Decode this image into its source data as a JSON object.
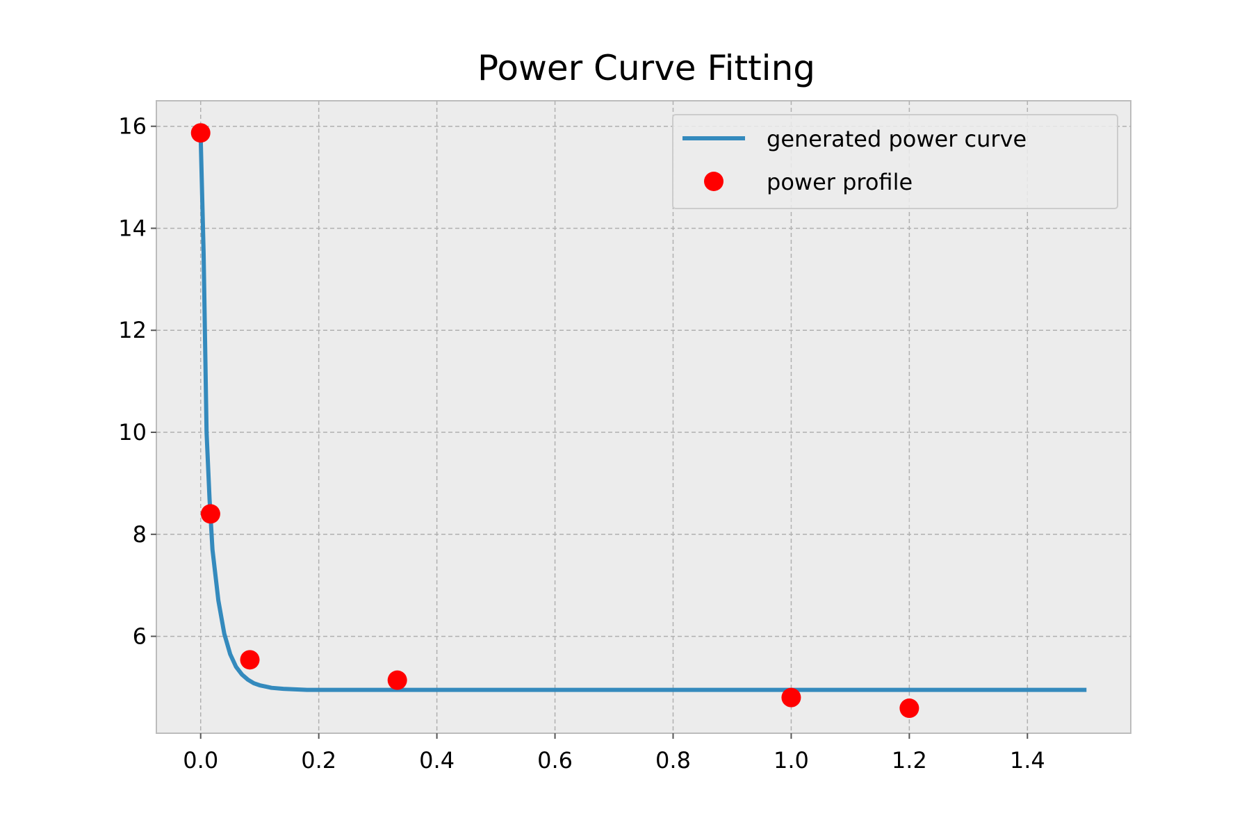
{
  "chart_data": {
    "type": "line",
    "title": "Power Curve Fitting",
    "xlabel": "",
    "ylabel": "",
    "xlim": [
      -0.075,
      1.575
    ],
    "ylim": [
      4.1,
      16.5
    ],
    "xticks": [
      "0.0",
      "0.2",
      "0.4",
      "0.6",
      "0.8",
      "1.0",
      "1.2",
      "1.4"
    ],
    "yticks": [
      "6",
      "8",
      "10",
      "12",
      "14",
      "16"
    ],
    "grid": true,
    "legend_position": "top-right",
    "background": "#ececec",
    "series": [
      {
        "name": "generated power curve",
        "kind": "line",
        "color": "#348abd",
        "x": [
          0.0,
          0.005,
          0.01,
          0.015,
          0.02,
          0.025,
          0.03,
          0.04,
          0.05,
          0.06,
          0.07,
          0.08,
          0.09,
          0.1,
          0.12,
          0.14,
          0.16,
          0.18,
          0.2,
          0.3,
          0.4,
          0.6,
          0.8,
          1.0,
          1.2,
          1.4,
          1.5
        ],
        "y": [
          15.8,
          13.5,
          10.0,
          8.7,
          7.7,
          7.2,
          6.7,
          6.05,
          5.65,
          5.4,
          5.25,
          5.15,
          5.08,
          5.04,
          4.99,
          4.97,
          4.96,
          4.95,
          4.95,
          4.95,
          4.95,
          4.95,
          4.95,
          4.95,
          4.95,
          4.95,
          4.95
        ]
      },
      {
        "name": "power profile",
        "kind": "scatter",
        "color": "#ff0000",
        "x": [
          0.0,
          0.0167,
          0.0833,
          0.333,
          1.0,
          1.2
        ],
        "y": [
          15.87,
          8.4,
          5.54,
          5.14,
          4.8,
          4.59
        ]
      }
    ]
  }
}
